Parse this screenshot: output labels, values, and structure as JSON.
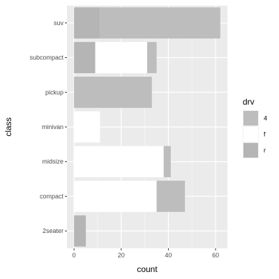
{
  "chart_data": {
    "type": "bar",
    "orientation": "horizontal",
    "stacked": true,
    "categories": [
      "2seater",
      "compact",
      "midsize",
      "minivan",
      "pickup",
      "subcompact",
      "suv"
    ],
    "series": [
      {
        "name": "4",
        "values": [
          0,
          12,
          3,
          0,
          33,
          4,
          51
        ],
        "color": "#bdbdbd"
      },
      {
        "name": "f",
        "values": [
          0,
          35,
          38,
          11,
          0,
          22,
          0
        ],
        "color": "#ffffff"
      },
      {
        "name": "r",
        "values": [
          5,
          0,
          0,
          0,
          0,
          9,
          11
        ],
        "color": "#b5b5b5"
      }
    ],
    "xlabel": "count",
    "ylabel": "class",
    "xlim": [
      -3,
      65
    ],
    "xticks": [
      0,
      20,
      40,
      60
    ],
    "grid": true,
    "panel_background": "#ebebeb",
    "legend": {
      "title": "drv",
      "position": "right"
    }
  }
}
